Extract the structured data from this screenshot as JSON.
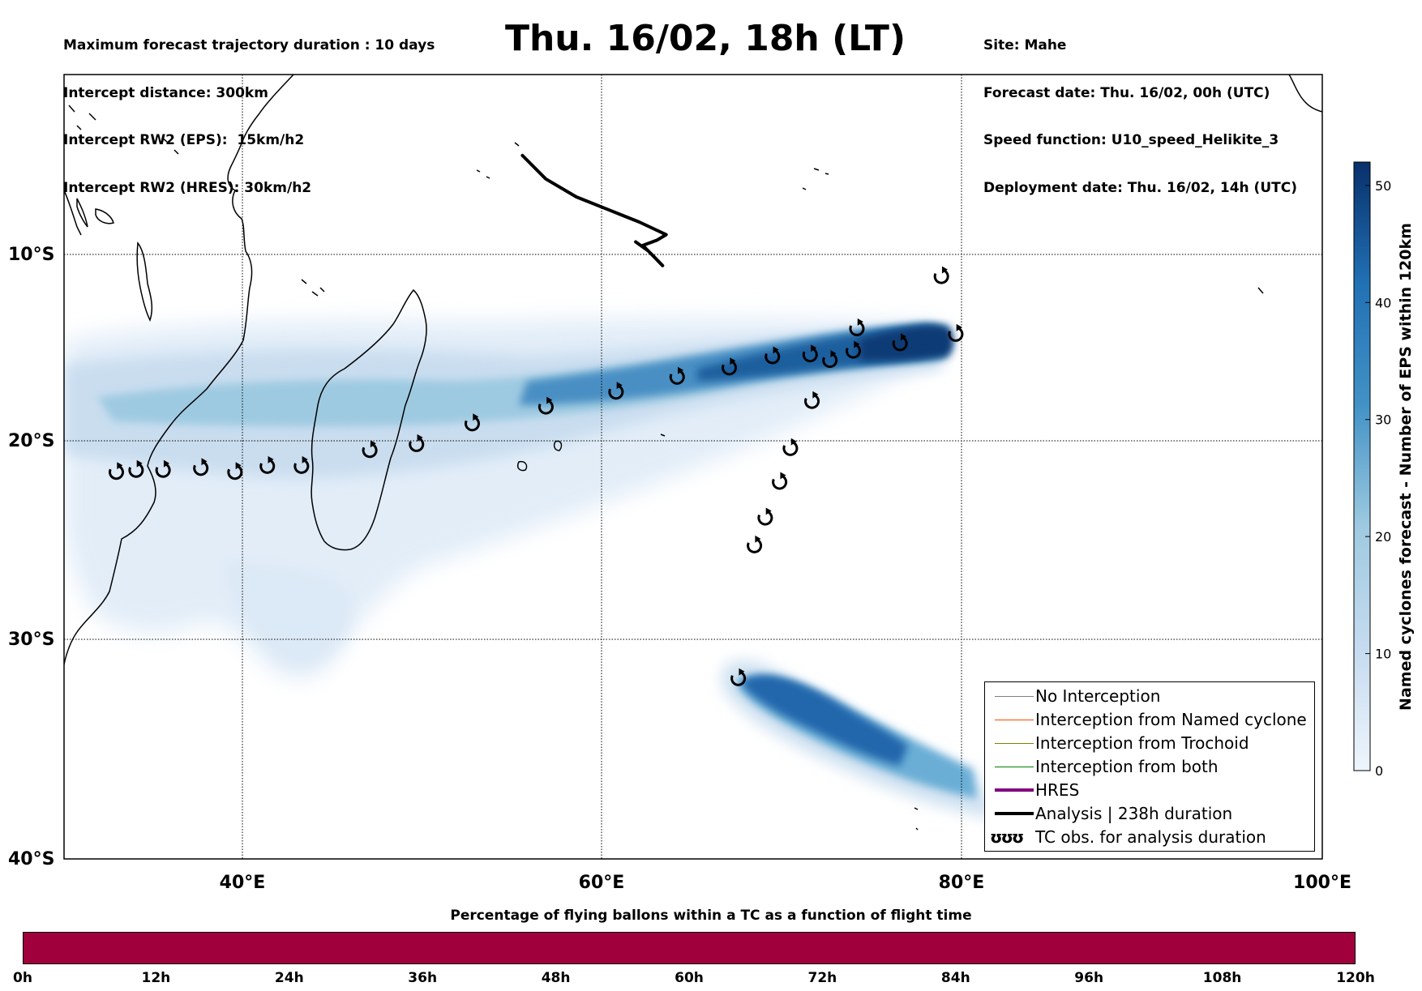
{
  "header_left": {
    "line1": "Maximum forecast trajectory duration : 10 days",
    "line2": "Intercept distance: 300km",
    "line3": "Intercept RW2 (EPS):  15km/h2",
    "line4": "Intercept RW2 (HRES): 30km/h2"
  },
  "title": "Thu. 16/02, 18h (LT)",
  "header_right": {
    "line1": "Site: Mahe",
    "line2": "Forecast date: Thu. 16/02, 00h (UTC)",
    "line3": "Speed function: U10_speed_Helikite_3",
    "line4": "Deployment date: Thu. 16/02, 14h (UTC)"
  },
  "map": {
    "lon_range": [
      30,
      100
    ],
    "lat_range": [
      -40,
      0
    ],
    "lat_ticks": [
      {
        "value": -10,
        "label": "10°S"
      },
      {
        "value": -20,
        "label": "20°S"
      },
      {
        "value": -30,
        "label": "30°S"
      },
      {
        "value": -40,
        "label": "40°S"
      }
    ],
    "lon_ticks": [
      {
        "value": 40,
        "label": "40°E"
      },
      {
        "value": 60,
        "label": "60°E"
      },
      {
        "value": 80,
        "label": "80°E"
      },
      {
        "value": 100,
        "label": "100°E"
      }
    ],
    "analysis_track": [
      [
        55.5,
        -4.5
      ],
      [
        56.8,
        -5.8
      ],
      [
        58.5,
        -6.8
      ],
      [
        60.5,
        -7.6
      ],
      [
        62.0,
        -8.2
      ],
      [
        63.5,
        -8.9
      ],
      [
        63.0,
        -9.2
      ],
      [
        62.2,
        -9.5
      ],
      [
        62.8,
        -10.1
      ],
      [
        63.3,
        -10.6
      ],
      [
        62.5,
        -9.8
      ],
      [
        61.8,
        -9.3
      ]
    ],
    "tc_obs": [
      [
        32.9,
        -21.6
      ],
      [
        34.0,
        -21.5
      ],
      [
        35.5,
        -21.5
      ],
      [
        37.6,
        -21.4
      ],
      [
        39.5,
        -21.6
      ],
      [
        41.3,
        -21.3
      ],
      [
        43.2,
        -21.3
      ],
      [
        47.0,
        -20.5
      ],
      [
        49.6,
        -20.2
      ],
      [
        52.7,
        -19.1
      ],
      [
        56.8,
        -18.2
      ],
      [
        60.7,
        -17.4
      ],
      [
        64.1,
        -16.6
      ],
      [
        67.0,
        -16.1
      ],
      [
        69.4,
        -15.5
      ],
      [
        71.5,
        -15.4
      ],
      [
        72.6,
        -15.7
      ],
      [
        73.9,
        -15.2
      ],
      [
        74.1,
        -14.0
      ],
      [
        76.5,
        -14.8
      ],
      [
        79.6,
        -14.3
      ],
      [
        78.8,
        -11.2
      ],
      [
        71.6,
        -17.9
      ],
      [
        70.4,
        -20.4
      ],
      [
        69.8,
        -22.1
      ],
      [
        69.0,
        -23.9
      ],
      [
        68.4,
        -25.3
      ],
      [
        67.5,
        -31.8
      ]
    ],
    "colorbar": {
      "label": "Named cyclones forecast - Number of EPS within 120km",
      "ticks": [
        0,
        10,
        20,
        30,
        40,
        50
      ],
      "max": 52,
      "color_low": "#e3eef8",
      "color_high": "#08306b"
    }
  },
  "legend": [
    {
      "label": "No Interception",
      "color": "#808080",
      "width": 1.2
    },
    {
      "label": "Interception from Named cyclone",
      "color": "#ff4500",
      "width": 1.2
    },
    {
      "label": "Interception from Trochoid",
      "color": "#808000",
      "width": 1.2
    },
    {
      "label": "Interception from both",
      "color": "#008000",
      "width": 1.2
    },
    {
      "label": "HRES",
      "color": "#800080",
      "width": 4
    },
    {
      "label": "Analysis | 238h duration",
      "color": "#000000",
      "width": 4
    },
    {
      "label": "TC obs. for analysis duration",
      "symbol": "ʊʊʊ"
    }
  ],
  "time_bar": {
    "title": "Percentage of flying ballons within a TC as a function of flight time",
    "color": "#a0003c",
    "ticks": [
      "0h",
      "12h",
      "24h",
      "36h",
      "48h",
      "60h",
      "72h",
      "84h",
      "96h",
      "108h",
      "120h"
    ]
  }
}
